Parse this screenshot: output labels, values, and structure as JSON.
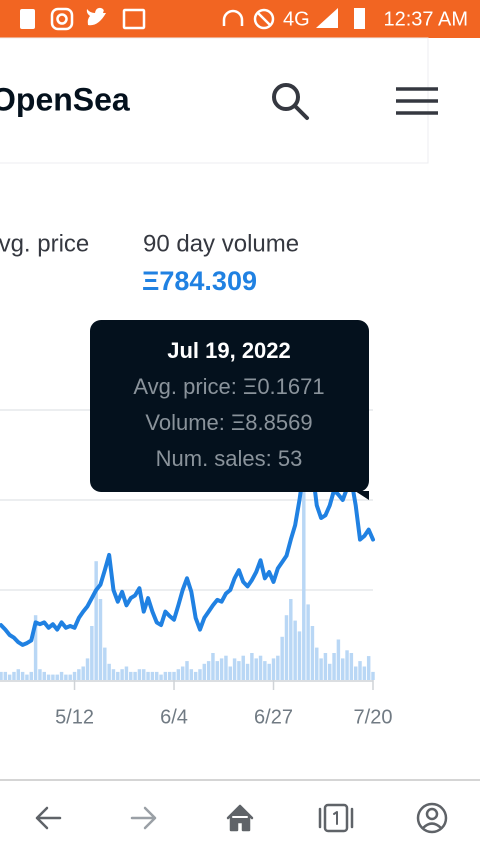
{
  "status_bar": {
    "network": "4G",
    "time": "12:37 AM"
  },
  "header": {
    "brand": "OpenSea"
  },
  "stats": {
    "avg_price_label": "Avg. price",
    "volume_label": "90 day volume",
    "volume_value": "Ξ784.309"
  },
  "tooltip": {
    "date": "Jul 19, 2022",
    "lines": [
      "Avg. price: Ξ0.1671",
      "Volume: Ξ8.8569",
      "Num. sales: 53"
    ]
  },
  "chart_data": {
    "type": "line",
    "categories": [
      null,
      null,
      null,
      null,
      null,
      null,
      null,
      null,
      null,
      null,
      null,
      null,
      null,
      null,
      null,
      null,
      null,
      "5/12",
      null,
      null,
      null,
      null,
      null,
      null,
      null,
      null,
      null,
      null,
      null,
      null,
      null,
      null,
      null,
      null,
      null,
      null,
      null,
      null,
      null,
      null,
      "6/4",
      null,
      null,
      null,
      null,
      null,
      null,
      null,
      null,
      null,
      null,
      null,
      null,
      null,
      null,
      null,
      null,
      null,
      null,
      null,
      null,
      null,
      null,
      "6/27",
      null,
      null,
      null,
      null,
      null,
      null,
      null,
      null,
      null,
      null,
      null,
      null,
      null,
      null,
      null,
      null,
      null,
      null,
      null,
      null,
      null,
      null,
      "7/20"
    ],
    "series": [
      {
        "name": "Volume",
        "type": "bar",
        "axis": "y2",
        "color": "#b9d7f5",
        "values": [
          3,
          3,
          2,
          3,
          4,
          3,
          2,
          3,
          24,
          4,
          3,
          2,
          2,
          2,
          3,
          2,
          2,
          3,
          4,
          5,
          8,
          20,
          44,
          30,
          12,
          6,
          4,
          3,
          4,
          5,
          3,
          3,
          4,
          4,
          3,
          3,
          3,
          2,
          3,
          3,
          3,
          4,
          5,
          7,
          4,
          3,
          4,
          6,
          7,
          10,
          7,
          8,
          9,
          5,
          8,
          7,
          9,
          6,
          10,
          8,
          9,
          7,
          6,
          8,
          9,
          16,
          24,
          30,
          22,
          18,
          96,
          28,
          20,
          12,
          8,
          10,
          6,
          10,
          15,
          8,
          11,
          10,
          5,
          7,
          5,
          8.8569,
          3
        ]
      },
      {
        "name": "Avg. price",
        "type": "line",
        "color": "#2081e2",
        "values": [
          0.061,
          0.056,
          0.05,
          0.047,
          0.042,
          0.039,
          0.041,
          0.044,
          0.064,
          0.062,
          0.064,
          0.058,
          0.062,
          0.056,
          0.064,
          0.058,
          0.06,
          0.058,
          0.069,
          0.076,
          0.082,
          0.091,
          0.1,
          0.106,
          0.122,
          0.139,
          0.1,
          0.087,
          0.098,
          0.083,
          0.091,
          0.094,
          0.102,
          0.076,
          0.091,
          0.076,
          0.064,
          0.061,
          0.076,
          0.071,
          0.067,
          0.083,
          0.1,
          0.113,
          0.098,
          0.069,
          0.056,
          0.069,
          0.076,
          0.083,
          0.089,
          0.087,
          0.096,
          0.1,
          0.113,
          0.122,
          0.109,
          0.104,
          0.111,
          0.12,
          0.133,
          0.113,
          0.12,
          0.109,
          0.124,
          0.131,
          0.138,
          0.156,
          0.172,
          0.2,
          0.233,
          0.261,
          0.233,
          0.194,
          0.18,
          0.183,
          0.194,
          0.211,
          0.206,
          0.2,
          0.213,
          0.222,
          0.194,
          0.156,
          0.16,
          0.1671,
          0.156
        ]
      }
    ],
    "ylim": [
      0,
      0.3
    ],
    "y2lim": [
      0,
      100
    ]
  }
}
